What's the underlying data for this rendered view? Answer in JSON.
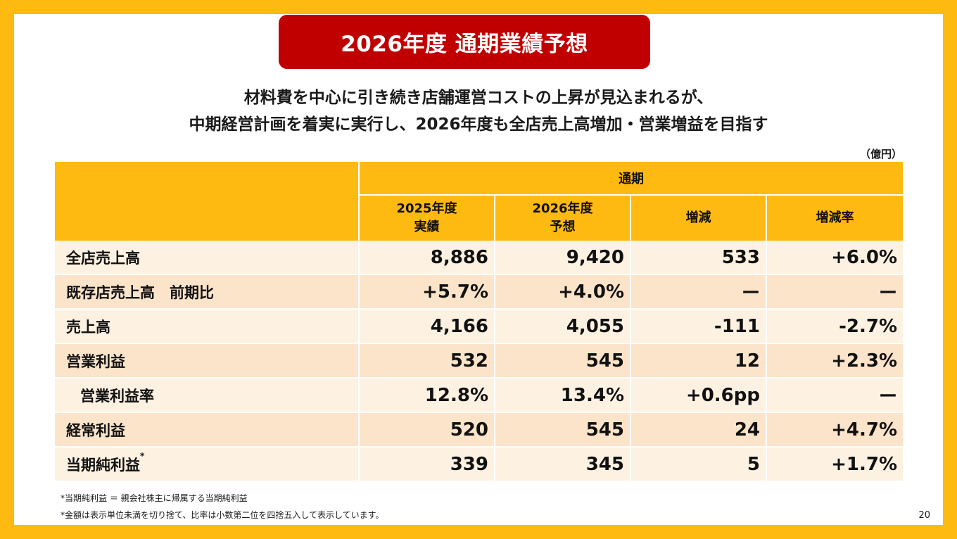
{
  "title": "2026年度 通期業績予想",
  "subtitle": {
    "line1": "材料費を中心に引き続き店舗運営コストの上昇が見込まれるが、",
    "line2": "中期経営計画を着実に実行し、2026年度も全店売上高増加・営業増益を目指す"
  },
  "unit": "（億円）",
  "table": {
    "group_header": "通期",
    "columns": [
      {
        "line1": "2025年度",
        "line2": "実績"
      },
      {
        "line1": "2026年度",
        "line2": "予想"
      },
      {
        "line1": "増減",
        "line2": ""
      },
      {
        "line1": "増減率",
        "line2": ""
      }
    ],
    "rows": [
      {
        "label": "全店売上高",
        "values": [
          "8,886",
          "9,420",
          "533",
          "+6.0%"
        ]
      },
      {
        "label": "既存店売上高　前期比",
        "values": [
          "+5.7%",
          "+4.0%",
          "ー",
          "ー"
        ]
      },
      {
        "label": "売上高",
        "values": [
          "4,166",
          "4,055",
          "-111",
          "-2.7%"
        ]
      },
      {
        "label": "営業利益",
        "values": [
          "532",
          "545",
          "12",
          "+2.3%"
        ]
      },
      {
        "label": "営業利益率",
        "values": [
          "12.8%",
          "13.4%",
          "+0.6pp",
          "ー"
        ]
      },
      {
        "label": "経常利益",
        "values": [
          "520",
          "545",
          "24",
          "+4.7%"
        ]
      },
      {
        "label": "当期純利益",
        "label_sup": "*",
        "values": [
          "339",
          "345",
          "5",
          "+1.7%"
        ]
      }
    ]
  },
  "footnotes": [
    "*当期純利益 ＝ 親会社株主に帰属する当期純利益",
    "*金額は表示単位未満を切り捨て、比率は小数第二位を四捨五入して表示しています。"
  ],
  "page_number": "20",
  "colors": {
    "frame": "#FFBA12",
    "title_bg": "#C00000",
    "header_bg": "#FFBA12",
    "row_light": "#FDF1E2",
    "row_dark": "#FBE4CA"
  }
}
